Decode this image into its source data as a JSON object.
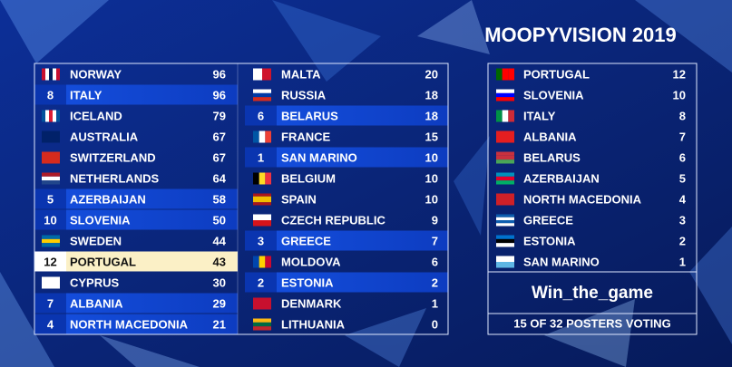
{
  "title": "MOOPYVISION 2019",
  "scoreboard": {
    "columns": [
      [
        {
          "received": null,
          "country": "NORWAY",
          "score": 96
        },
        {
          "received": 8,
          "country": "ITALY",
          "score": 96
        },
        {
          "received": null,
          "country": "ICELAND",
          "score": 79
        },
        {
          "received": null,
          "country": "AUSTRALIA",
          "score": 67
        },
        {
          "received": null,
          "country": "SWITZERLAND",
          "score": 67
        },
        {
          "received": null,
          "country": "NETHERLANDS",
          "score": 64
        },
        {
          "received": 5,
          "country": "AZERBAIJAN",
          "score": 58
        },
        {
          "received": 10,
          "country": "SLOVENIA",
          "score": 50
        },
        {
          "received": null,
          "country": "SWEDEN",
          "score": 44
        },
        {
          "received": 12,
          "country": "PORTUGAL",
          "score": 43
        },
        {
          "received": null,
          "country": "CYPRUS",
          "score": 30
        },
        {
          "received": 7,
          "country": "ALBANIA",
          "score": 29
        },
        {
          "received": 4,
          "country": "NORTH MACEDONIA",
          "score": 21
        }
      ],
      [
        {
          "received": null,
          "country": "MALTA",
          "score": 20
        },
        {
          "received": null,
          "country": "RUSSIA",
          "score": 18
        },
        {
          "received": 6,
          "country": "BELARUS",
          "score": 18
        },
        {
          "received": null,
          "country": "FRANCE",
          "score": 15
        },
        {
          "received": 1,
          "country": "SAN MARINO",
          "score": 10
        },
        {
          "received": null,
          "country": "BELGIUM",
          "score": 10
        },
        {
          "received": null,
          "country": "SPAIN",
          "score": 10
        },
        {
          "received": null,
          "country": "CZECH REPUBLIC",
          "score": 9
        },
        {
          "received": 3,
          "country": "GREECE",
          "score": 7
        },
        {
          "received": null,
          "country": "MOLDOVA",
          "score": 6
        },
        {
          "received": 2,
          "country": "ESTONIA",
          "score": 2
        },
        {
          "received": null,
          "country": "DENMARK",
          "score": 1
        },
        {
          "received": null,
          "country": "LITHUANIA",
          "score": 0
        }
      ]
    ]
  },
  "votes": {
    "rows": [
      {
        "country": "PORTUGAL",
        "points": 12
      },
      {
        "country": "SLOVENIA",
        "points": 10
      },
      {
        "country": "ITALY",
        "points": 8
      },
      {
        "country": "ALBANIA",
        "points": 7
      },
      {
        "country": "BELARUS",
        "points": 6
      },
      {
        "country": "AZERBAIJAN",
        "points": 5
      },
      {
        "country": "NORTH MACEDONIA",
        "points": 4
      },
      {
        "country": "GREECE",
        "points": 3
      },
      {
        "country": "ESTONIA",
        "points": 2
      },
      {
        "country": "SAN MARINO",
        "points": 1
      }
    ],
    "voter": "Win_the_game",
    "status": "15 OF 32 POSTERS VOTING"
  }
}
